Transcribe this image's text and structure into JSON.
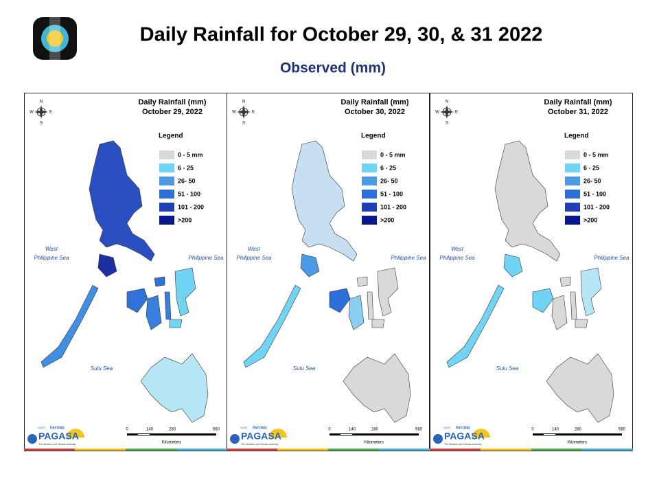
{
  "header": {
    "title": "Daily Rainfall for October 29, 30, & 31 2022",
    "subtitle": "Observed (mm)"
  },
  "panels": [
    {
      "heading": "Daily Rainfall (mm)",
      "date": "October 29, 2022",
      "legend_title": "Legend",
      "legend": [
        {
          "label": "0 - 5 mm",
          "color": "#d9d9d9"
        },
        {
          "label": "6 - 25",
          "color": "#72d4f4"
        },
        {
          "label": "26- 50",
          "color": "#4a9ae6"
        },
        {
          "label": "51 - 100",
          "color": "#2d6fd9"
        },
        {
          "label": "101 - 200",
          "color": "#1f3fb4"
        },
        {
          "label": ">200",
          "color": "#0a1890"
        }
      ],
      "sea_labels": [
        "West",
        "Philippine Sea",
        "Philippine Sea",
        "Sulu Sea"
      ],
      "compass": [
        "N",
        "S",
        "W",
        "E"
      ],
      "scale": [
        "0",
        "140",
        "280",
        "560"
      ],
      "scale_unit": "Kilometers",
      "logo": [
        "DOST",
        "PAYONG",
        "PAGASA",
        "The Weather and Climate Authority"
      ]
    },
    {
      "heading": "Daily Rainfall (mm)",
      "date": "October 30, 2022",
      "legend_title": "Legend",
      "legend": [
        {
          "label": "0 - 5 mm",
          "color": "#d9d9d9"
        },
        {
          "label": "6 - 25",
          "color": "#72d4f4"
        },
        {
          "label": "26- 50",
          "color": "#4a9ae6"
        },
        {
          "label": "51 - 100",
          "color": "#2d6fd9"
        },
        {
          "label": "101 - 200",
          "color": "#1f3fb4"
        },
        {
          "label": ">200",
          "color": "#0a1890"
        }
      ],
      "sea_labels": [
        "West",
        "Philippine Sea",
        "Philippine Sea",
        "Sulu Sea"
      ],
      "compass": [
        "N",
        "S",
        "W",
        "E"
      ],
      "scale": [
        "0",
        "140",
        "280",
        "560"
      ],
      "scale_unit": "Kilometers",
      "logo": [
        "DOST",
        "PAYONG",
        "PAGASA",
        "The Weather and Climate Authority"
      ]
    },
    {
      "heading": "Daily Rainfall (mm)",
      "date": "October 31, 2022",
      "legend_title": "Legend",
      "legend": [
        {
          "label": "0 - 5 mm",
          "color": "#d9d9d9"
        },
        {
          "label": "6 - 25",
          "color": "#72d4f4"
        },
        {
          "label": "26- 50",
          "color": "#4a9ae6"
        },
        {
          "label": "51 - 100",
          "color": "#2d6fd9"
        },
        {
          "label": "101 - 200",
          "color": "#1f3fb4"
        },
        {
          "label": ">200",
          "color": "#0a1890"
        }
      ],
      "sea_labels": [
        "West",
        "Philippine Sea",
        "Philippine Sea",
        "Sulu Sea"
      ],
      "compass": [
        "N",
        "S",
        "W",
        "E"
      ],
      "scale": [
        "0",
        "140",
        "280",
        "560"
      ],
      "scale_unit": "Kilometers",
      "logo": [
        "DOST",
        "PAYONG",
        "PAGASA",
        "The Weather and Climate Authority"
      ]
    }
  ]
}
